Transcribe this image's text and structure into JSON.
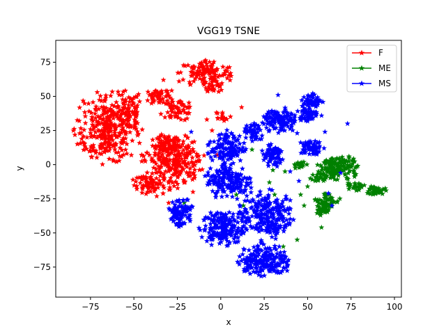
{
  "chart_data": {
    "type": "scatter",
    "title": "VGG19 TSNE",
    "xlabel": "x",
    "ylabel": "y",
    "xlim": [
      -95,
      104
    ],
    "ylim": [
      -97,
      91
    ],
    "xticks": [
      -75,
      -50,
      -25,
      0,
      25,
      50,
      75,
      100
    ],
    "yticks": [
      -75,
      -50,
      -25,
      0,
      25,
      50,
      75
    ],
    "xtick_labels": [
      "−75",
      "−50",
      "−25",
      "0",
      "25",
      "50",
      "75",
      "100"
    ],
    "ytick_labels": [
      "−75",
      "−50",
      "−25",
      "0",
      "25",
      "50",
      "75"
    ],
    "grid": false,
    "legend_position": "top-right",
    "marker": "star",
    "series": [
      {
        "name": "F",
        "color": "#ff0000",
        "clusters": [
          {
            "cx": -65,
            "cy": 27,
            "rx": 19,
            "ry": 27,
            "n": 320
          },
          {
            "cx": -53,
            "cy": 40,
            "rx": 8,
            "ry": 15,
            "n": 60
          },
          {
            "cx": -35,
            "cy": 50,
            "rx": 9,
            "ry": 6,
            "n": 50
          },
          {
            "cx": -25,
            "cy": 40,
            "rx": 10,
            "ry": 8,
            "n": 60
          },
          {
            "cx": -8,
            "cy": 67,
            "rx": 16,
            "ry": 10,
            "n": 120
          },
          {
            "cx": -5,
            "cy": 57,
            "rx": 7,
            "ry": 5,
            "n": 25
          },
          {
            "cx": 1,
            "cy": 36,
            "rx": 5,
            "ry": 4,
            "n": 15
          },
          {
            "cx": -28,
            "cy": 3,
            "rx": 18,
            "ry": 20,
            "n": 260
          },
          {
            "cx": -40,
            "cy": -15,
            "rx": 12,
            "ry": 8,
            "n": 70
          },
          {
            "cx": -30,
            "cy": 15,
            "rx": 8,
            "ry": 6,
            "n": 40
          }
        ],
        "outliers": [
          [
            -33,
            62
          ],
          [
            -24,
            61
          ],
          [
            -17,
            65
          ],
          [
            -8,
            33
          ],
          [
            12,
            42
          ],
          [
            -5,
            25
          ],
          [
            -30,
            -28
          ],
          [
            -16,
            -20
          ],
          [
            -2,
            7
          ]
        ]
      },
      {
        "name": "ME",
        "color": "#008000",
        "clusters": [
          {
            "cx": 67,
            "cy": -3,
            "rx": 12,
            "ry": 11,
            "n": 150
          },
          {
            "cx": 89,
            "cy": -19,
            "rx": 6,
            "ry": 4,
            "n": 40
          },
          {
            "cx": 77,
            "cy": -16,
            "rx": 6,
            "ry": 3,
            "n": 25
          },
          {
            "cx": 61,
            "cy": -26,
            "rx": 8,
            "ry": 6,
            "n": 55
          },
          {
            "cx": 58,
            "cy": -34,
            "rx": 5,
            "ry": 4,
            "n": 25
          },
          {
            "cx": 45,
            "cy": 0,
            "rx": 5,
            "ry": 3,
            "n": 20
          },
          {
            "cx": 56,
            "cy": -10,
            "rx": 5,
            "ry": 4,
            "n": 20
          }
        ],
        "outliers": [
          [
            18,
            11
          ],
          [
            28,
            -13
          ],
          [
            31,
            -22
          ],
          [
            36,
            -60
          ],
          [
            44,
            -55
          ],
          [
            58,
            -46
          ],
          [
            9,
            -22
          ],
          [
            13,
            -30
          ],
          [
            37,
            -5
          ],
          [
            50,
            -16
          ],
          [
            46,
            -22
          ],
          [
            30,
            -4
          ],
          [
            48,
            -30
          ],
          [
            -21,
            -28
          ]
        ]
      },
      {
        "name": "MS",
        "color": "#0000ff",
        "clusters": [
          {
            "cx": 3,
            "cy": 12,
            "rx": 11,
            "ry": 13,
            "n": 120
          },
          {
            "cx": 5,
            "cy": -12,
            "rx": 14,
            "ry": 14,
            "n": 170
          },
          {
            "cx": -24,
            "cy": -35,
            "rx": 8,
            "ry": 12,
            "n": 90
          },
          {
            "cx": 1,
            "cy": -47,
            "rx": 13,
            "ry": 13,
            "n": 170
          },
          {
            "cx": 26,
            "cy": -37,
            "rx": 16,
            "ry": 19,
            "n": 250
          },
          {
            "cx": 25,
            "cy": -70,
            "rx": 16,
            "ry": 12,
            "n": 200
          },
          {
            "cx": 34,
            "cy": 32,
            "rx": 10,
            "ry": 10,
            "n": 120
          },
          {
            "cx": 19,
            "cy": 23,
            "rx": 6,
            "ry": 7,
            "n": 50
          },
          {
            "cx": 30,
            "cy": 6,
            "rx": 7,
            "ry": 10,
            "n": 70
          },
          {
            "cx": 52,
            "cy": 13,
            "rx": 8,
            "ry": 6,
            "n": 60
          },
          {
            "cx": 51,
            "cy": 38,
            "rx": 7,
            "ry": 7,
            "n": 60
          },
          {
            "cx": 53,
            "cy": 47,
            "rx": 7,
            "ry": 5,
            "n": 40
          }
        ],
        "outliers": [
          [
            -17,
            24
          ],
          [
            69,
            -6
          ],
          [
            62,
            -21
          ],
          [
            64,
            -30
          ],
          [
            45,
            -12
          ],
          [
            40,
            -5
          ],
          [
            33,
            51
          ],
          [
            73,
            30
          ],
          [
            60,
            24
          ],
          [
            44,
            23
          ]
        ]
      }
    ]
  }
}
